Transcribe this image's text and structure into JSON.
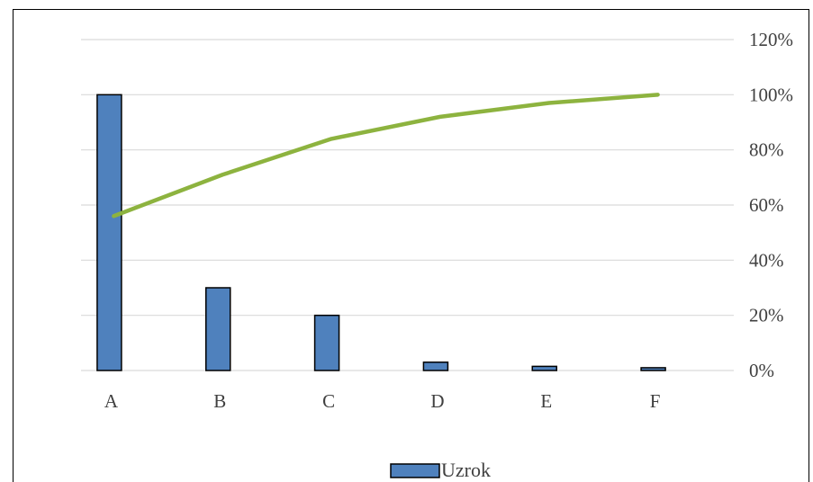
{
  "chart_data": {
    "type": "bar",
    "categories": [
      "A",
      "B",
      "C",
      "D",
      "E",
      "F"
    ],
    "series": [
      {
        "name": "Uzrok",
        "kind": "bar",
        "values": [
          100,
          30,
          20,
          3,
          1.5,
          1
        ],
        "color": "#4f81bd"
      },
      {
        "kind": "line",
        "values": [
          56,
          71,
          84,
          92,
          97,
          100
        ],
        "color": "#8db33f"
      }
    ],
    "y_ticks": [
      "0%",
      "20%",
      "40%",
      "60%",
      "80%",
      "100%",
      "120%"
    ],
    "ylim": [
      0,
      120
    ],
    "y_axis_position": "right",
    "grid": true,
    "legend": {
      "position": "bottom",
      "label": "Uzrok"
    }
  }
}
